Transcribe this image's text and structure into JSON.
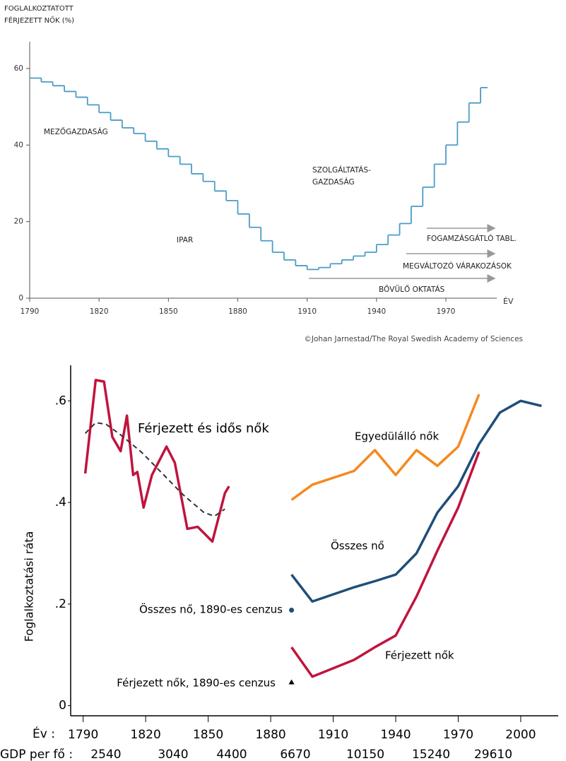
{
  "chart_data": [
    {
      "type": "step",
      "y_label": [
        "FOGLALKOZTATOTT",
        "FÉRJEZETT NŐK (%)"
      ],
      "x_label": "ÉV",
      "annotations": [
        "MEZŐGAZDASÁG",
        "IPAR",
        "SZOLGÁLTATÁS-",
        "GAZDASÁG",
        "FOGAMZÁSGÁTLÓ TABL.",
        "MEGVÁLTOZÓ VÁRAKOZÁSOK",
        "BŐVÜLŐ OKTATÁS"
      ],
      "credit": "©Johan Jarnestad/The Royal Swedish Academy of Sciences",
      "color": "#4a9cc7",
      "x": [
        1790,
        1795,
        1800,
        1805,
        1810,
        1815,
        1820,
        1825,
        1830,
        1835,
        1840,
        1845,
        1850,
        1855,
        1860,
        1865,
        1870,
        1875,
        1880,
        1885,
        1890,
        1895,
        1900,
        1905,
        1910,
        1915,
        1920,
        1925,
        1930,
        1935,
        1940,
        1945,
        1950,
        1955,
        1960,
        1965,
        1970,
        1975,
        1980,
        1985
      ],
      "values": [
        57.5,
        56.5,
        55.5,
        54,
        52.5,
        50.5,
        48.5,
        46.5,
        44.5,
        43,
        41,
        39,
        37,
        35,
        32.5,
        30.5,
        28,
        25.5,
        22,
        18.5,
        15,
        12,
        10,
        8.5,
        7.5,
        8,
        9,
        10,
        11,
        12,
        14,
        16.5,
        19.5,
        24,
        29,
        35,
        40,
        46,
        51,
        55
      ],
      "xlim": [
        1790,
        1992
      ],
      "ylim": [
        0,
        67
      ],
      "xticks": [
        1790,
        1820,
        1850,
        1880,
        1910,
        1940,
        1970
      ],
      "yticks": [
        0,
        20,
        40,
        60
      ]
    },
    {
      "type": "line",
      "y_label": "Foglalkoztatási ráta",
      "x_label": "Év :",
      "gdp_label": "GDP per fő :",
      "gdp_values": [
        2540,
        3040,
        4400,
        6670,
        10150,
        15240,
        29610
      ],
      "xlim": [
        1784,
        2018
      ],
      "ylim": [
        -0.02,
        0.67
      ],
      "xticks": [
        1790,
        1820,
        1850,
        1880,
        1910,
        1940,
        1970,
        2000
      ],
      "yticks": [
        {
          "value": 0,
          "label": "0"
        },
        {
          "value": 0.2,
          "label": ".2"
        },
        {
          "value": 0.4,
          "label": ".4"
        },
        {
          "value": 0.6,
          "label": ".6"
        }
      ],
      "series": [
        {
          "name": "Férjezett és idős nők",
          "color": "#c0143c",
          "x": [
            1791,
            1796,
            1800,
            1804,
            1808,
            1811,
            1814,
            1816,
            1819,
            1823,
            1830,
            1834,
            1840,
            1845,
            1852,
            1858,
            1860
          ],
          "values": [
            0.457,
            0.641,
            0.638,
            0.529,
            0.501,
            0.571,
            0.454,
            0.46,
            0.39,
            0.454,
            0.51,
            0.478,
            0.348,
            0.352,
            0.323,
            0.418,
            0.432
          ]
        },
        {
          "color": "#333333",
          "dashed": true,
          "x": [
            1791,
            1796,
            1801,
            1808,
            1818,
            1828,
            1838,
            1848,
            1853,
            1858
          ],
          "values": [
            0.536,
            0.557,
            0.554,
            0.533,
            0.499,
            0.457,
            0.415,
            0.38,
            0.373,
            0.387
          ]
        },
        {
          "name": "Egyedülálló nők",
          "color": "#f5891f",
          "x": [
            1890,
            1900,
            1920,
            1930,
            1940,
            1950,
            1960,
            1970,
            1980
          ],
          "values": [
            0.405,
            0.435,
            0.462,
            0.503,
            0.454,
            0.503,
            0.472,
            0.51,
            0.613
          ]
        },
        {
          "name": "Összes nő",
          "color": "#1f4e79",
          "x": [
            1890,
            1900,
            1920,
            1930,
            1940,
            1950,
            1960,
            1970,
            1980,
            1990,
            2000,
            2010
          ],
          "values": [
            0.258,
            0.205,
            0.233,
            0.245,
            0.258,
            0.3,
            0.38,
            0.432,
            0.515,
            0.577,
            0.6,
            0.59
          ]
        },
        {
          "name": "Férjezett nők",
          "color": "#c0143c",
          "x": [
            1890,
            1900,
            1920,
            1930,
            1940,
            1950,
            1960,
            1970,
            1980
          ],
          "values": [
            0.115,
            0.057,
            0.09,
            0.115,
            0.138,
            0.215,
            0.305,
            0.39,
            0.5
          ]
        },
        {
          "name": "Összes nő, 1890-es cenzus",
          "color": "#1f4e79",
          "marker": "circle",
          "x": [
            1890
          ],
          "values": [
            0.188
          ]
        },
        {
          "name": "Férjezett nők, 1890-es cenzus",
          "color": "#000000",
          "marker": "triangle",
          "x": [
            1890
          ],
          "values": [
            0.046
          ]
        }
      ]
    }
  ]
}
